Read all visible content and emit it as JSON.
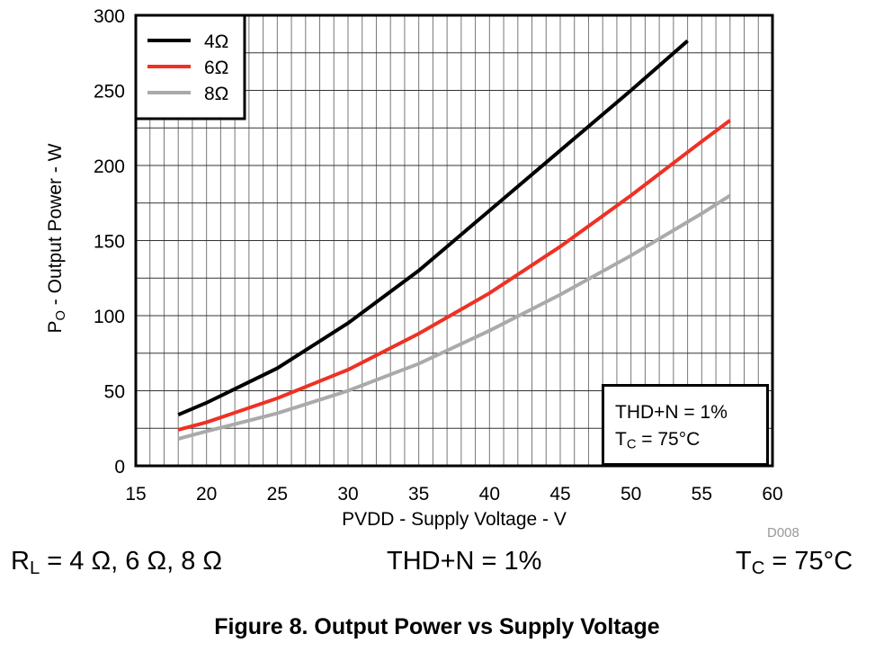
{
  "chart_data": {
    "type": "line",
    "title": "Figure 8. Output Power vs Supply Voltage",
    "xlabel": "PVDD - Supply Voltage - V",
    "ylabel_main": "P",
    "ylabel_sub": "O",
    "ylabel_rest": " - Output Power - W",
    "xlim": [
      15,
      60
    ],
    "ylim": [
      0,
      300
    ],
    "xticks": [
      15,
      20,
      25,
      30,
      35,
      40,
      45,
      50,
      55,
      60
    ],
    "yticks": [
      0,
      50,
      100,
      150,
      200,
      250,
      300
    ],
    "grid": true,
    "legend_placement": "top-left",
    "series": [
      {
        "name": "4Ω",
        "color": "#000000",
        "x": [
          18,
          20,
          25,
          30,
          35,
          40,
          45,
          50,
          54
        ],
        "y": [
          34,
          42,
          65,
          95,
          130,
          170,
          210,
          250,
          283
        ]
      },
      {
        "name": "6Ω",
        "color": "#ee3124",
        "x": [
          18,
          20,
          25,
          30,
          35,
          40,
          45,
          50,
          55,
          57
        ],
        "y": [
          24,
          29,
          45,
          64,
          88,
          115,
          146,
          180,
          216,
          230
        ]
      },
      {
        "name": "8Ω",
        "color": "#aaaaaa",
        "x": [
          18,
          20,
          25,
          30,
          35,
          40,
          45,
          50,
          55,
          57
        ],
        "y": [
          18,
          23,
          35,
          50,
          68,
          90,
          114,
          140,
          168,
          180
        ]
      }
    ],
    "annotation": {
      "line1": "THD+N = 1%",
      "line2_main": "T",
      "line2_sub": "C",
      "line2_rest": " = 75°C"
    },
    "figure_id": "D008"
  },
  "conditions": {
    "rl_main": "R",
    "rl_sub": "L",
    "rl_rest": " = 4 Ω, 6 Ω, 8 Ω",
    "thd": "THD+N = 1%",
    "tc_main": "T",
    "tc_sub": "C",
    "tc_rest": " = 75°C"
  },
  "caption": "Figure 8. Output Power vs Supply Voltage"
}
